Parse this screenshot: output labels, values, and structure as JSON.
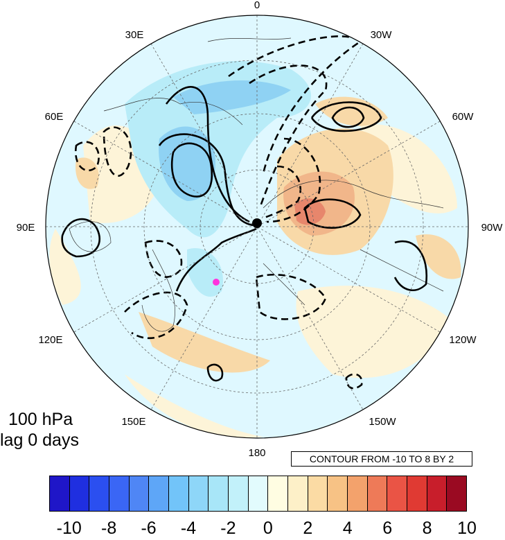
{
  "map": {
    "projection": "north-polar-stereographic",
    "longitude_labels": [
      "0",
      "30W",
      "60W",
      "90W",
      "120W",
      "150W",
      "180",
      "150E",
      "120E",
      "90E",
      "60E",
      "30E"
    ],
    "field_colors": {
      "ocean_background": "#dff8ff",
      "land_neutral": "#fdf4d8",
      "negative_light": "#b8ecf8",
      "negative_medium": "#8fd2f3",
      "positive_light": "#f8d9a8",
      "positive_medium": "#f1b68a",
      "positive_strong": "#e7866c"
    },
    "marker_color": "#ff33dd"
  },
  "info": {
    "level": "100 hPa",
    "lag": "lag 0 days"
  },
  "contour_note": "CONTOUR FROM -10 TO 8 BY 2",
  "colorbar": {
    "colors": [
      "#1f16c8",
      "#1f2fe0",
      "#2b4ff0",
      "#3a66f5",
      "#4f86f5",
      "#5ea6f7",
      "#72c4f9",
      "#8ed6f8",
      "#a8e6f8",
      "#c2f1fa",
      "#e2fbfd",
      "#fffde2",
      "#fdf0c8",
      "#fbdba4",
      "#f7c285",
      "#f3a26c",
      "#ee7a58",
      "#ea5445",
      "#e03a33",
      "#c81e2b",
      "#9a0a22"
    ],
    "tick_labels": [
      "-10",
      "-8",
      "-6",
      "-4",
      "-2",
      "0",
      "2",
      "4",
      "6",
      "8",
      "10"
    ]
  }
}
